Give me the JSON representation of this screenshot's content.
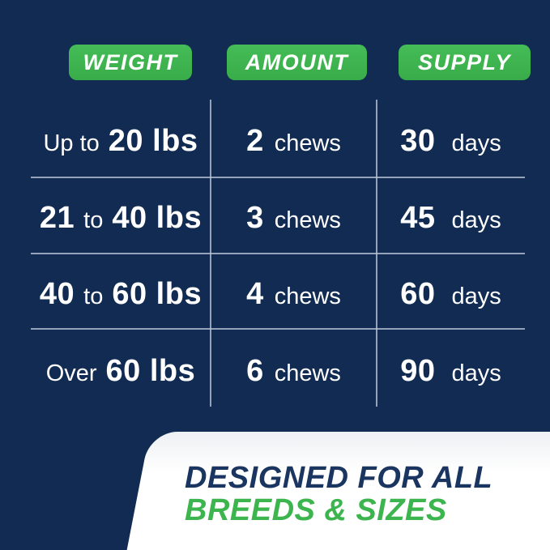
{
  "chart_data": {
    "type": "table",
    "columns": [
      "WEIGHT",
      "AMOUNT",
      "SUPPLY"
    ],
    "rows": [
      [
        "Up to 20 lbs",
        "2 chews",
        "30 days"
      ],
      [
        "21 to 40 lbs",
        "3 chews",
        "45 days"
      ],
      [
        "40 to 60 lbs",
        "4 chews",
        "60 days"
      ],
      [
        "Over 60 lbs",
        "6 chews",
        "90 days"
      ]
    ],
    "footnote": "DESIGNED FOR ALL BREEDS & SIZES"
  },
  "table": {
    "headers": [
      {
        "label": "WEIGHT"
      },
      {
        "label": "AMOUNT"
      },
      {
        "label": "SUPPLY"
      }
    ],
    "rows": [
      {
        "weight_a": "",
        "weight_b": "Up to",
        "weight_c": "20 lbs",
        "amount_value": "2",
        "amount_unit": "chews",
        "supply_value": "30",
        "supply_unit": "days"
      },
      {
        "weight_a": "21",
        "weight_b": "to",
        "weight_c": "40 lbs",
        "amount_value": "3",
        "amount_unit": "chews",
        "supply_value": "45",
        "supply_unit": "days"
      },
      {
        "weight_a": "40",
        "weight_b": "to",
        "weight_c": "60 lbs",
        "amount_value": "4",
        "amount_unit": "chews",
        "supply_value": "60",
        "supply_unit": "days"
      },
      {
        "weight_a": "",
        "weight_b": "Over",
        "weight_c": "60 lbs",
        "amount_value": "6",
        "amount_unit": "chews",
        "supply_value": "90",
        "supply_unit": "days"
      }
    ]
  },
  "footer": {
    "line1": "DESIGNED FOR ALL",
    "line2": "BREEDS & SIZES"
  },
  "colors": {
    "background_navy": "#112b52",
    "badge_green": "#3cb14f",
    "divider": "#b6c2d4",
    "footer_heading_navy": "#1b3561",
    "footer_heading_green": "#3cb54e",
    "footer_panel_white": "#ffffff"
  }
}
